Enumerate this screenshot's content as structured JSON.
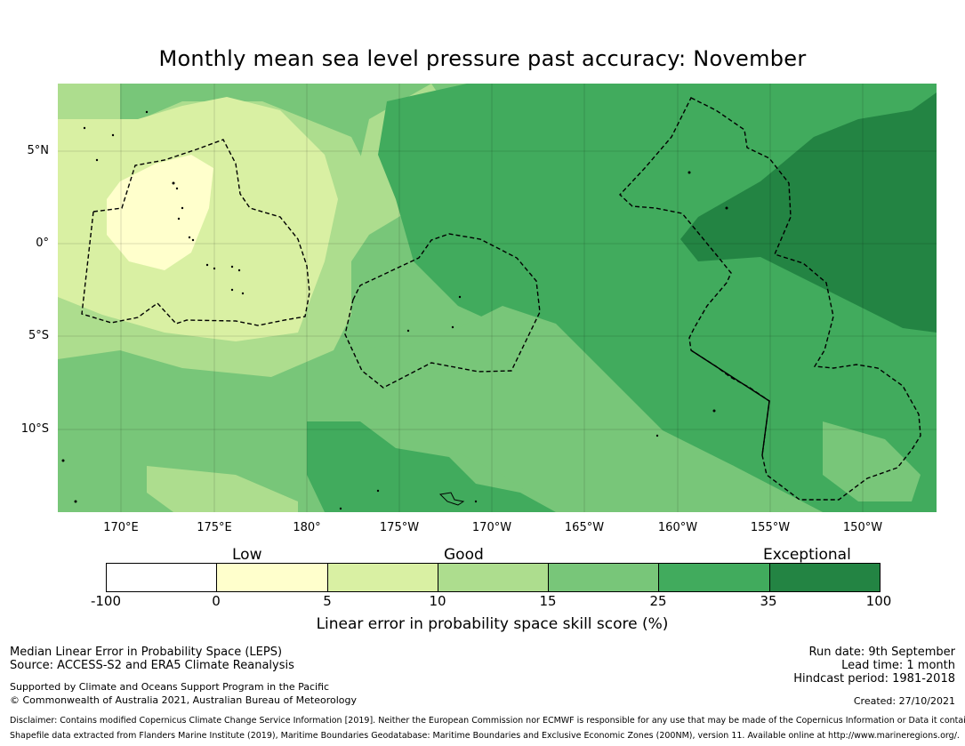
{
  "title": "Monthly mean sea level pressure past accuracy: November",
  "map": {
    "lat_labels": [
      "5°N",
      "0°",
      "5°S",
      "10°S"
    ],
    "lon_labels": [
      "170°E",
      "175°E",
      "180°",
      "175°W",
      "170°W",
      "165°W",
      "160°W",
      "155°W",
      "150°W"
    ],
    "colors": {
      "bin_0_5": "#ffffcc",
      "bin_5_10": "#d9f0a3",
      "bin_10_15": "#addd8e",
      "bin_15_25": "#78c679",
      "bin_25_35": "#41ab5d",
      "bin_35_100": "#238443"
    }
  },
  "colorbar": {
    "categories": [
      "Low",
      "Good",
      "Exceptional"
    ],
    "ticks": [
      "-100",
      "0",
      "5",
      "10",
      "15",
      "25",
      "35",
      "100"
    ],
    "segment_colors": [
      "#ffffff",
      "#ffffcc",
      "#d9f0a3",
      "#addd8e",
      "#78c679",
      "#41ab5d",
      "#238443"
    ],
    "label": "Linear error in probability space skill score (%)"
  },
  "footer": {
    "method": "Median Linear Error in Probability Space (LEPS)",
    "source": "Source: ACCESS-S2 and ERA5 Climate Reanalysis",
    "support": "Supported by Climate and Oceans Support Program in the Pacific",
    "copyright": "© Commonwealth of Australia 2021, Australian Bureau of Meteorology",
    "run_date": "Run date: 9th September",
    "lead_time": "Lead time: 1 month",
    "hindcast": "Hindcast period: 1981-2018",
    "created": "Created: 27/10/2021",
    "disclaimer": "Disclaimer: Contains modified Copernicus Climate Change Service Information [2019]. Neither the European Commission nor ECMWF is responsible for any use that may be made of the Copernicus Information or Data it contains.",
    "shapefile": "Shapefile data extracted from Flanders Marine Institute (2019), Maritime Boundaries Geodatabase: Maritime Boundaries and Exclusive Economic Zones (200NM), version 11. Available online at http://www.marineregions.org/."
  }
}
